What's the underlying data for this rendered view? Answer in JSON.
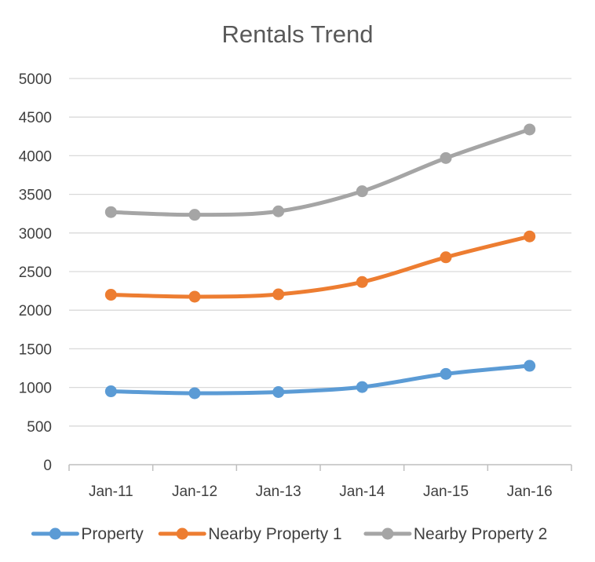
{
  "chart_data": {
    "type": "line",
    "title": "Rentals Trend",
    "xlabel": "",
    "ylabel": "",
    "categories": [
      "Jan-11",
      "Jan-12",
      "Jan-13",
      "Jan-14",
      "Jan-15",
      "Jan-16"
    ],
    "ylim": [
      0,
      5000
    ],
    "yticks": [
      0,
      500,
      1000,
      1500,
      2000,
      2500,
      3000,
      3500,
      4000,
      4500,
      5000
    ],
    "grid": true,
    "legend_position": "bottom",
    "series": [
      {
        "name": "Property",
        "color": "#5B9BD5",
        "values": [
          950,
          925,
          940,
          1005,
          1175,
          1280
        ]
      },
      {
        "name": "Nearby Property 1",
        "color": "#ED7D31",
        "values": [
          2200,
          2175,
          2205,
          2365,
          2685,
          2955
        ]
      },
      {
        "name": "Nearby Property 2",
        "color": "#A5A5A5",
        "values": [
          3270,
          3235,
          3280,
          3540,
          3970,
          4340
        ]
      }
    ]
  }
}
